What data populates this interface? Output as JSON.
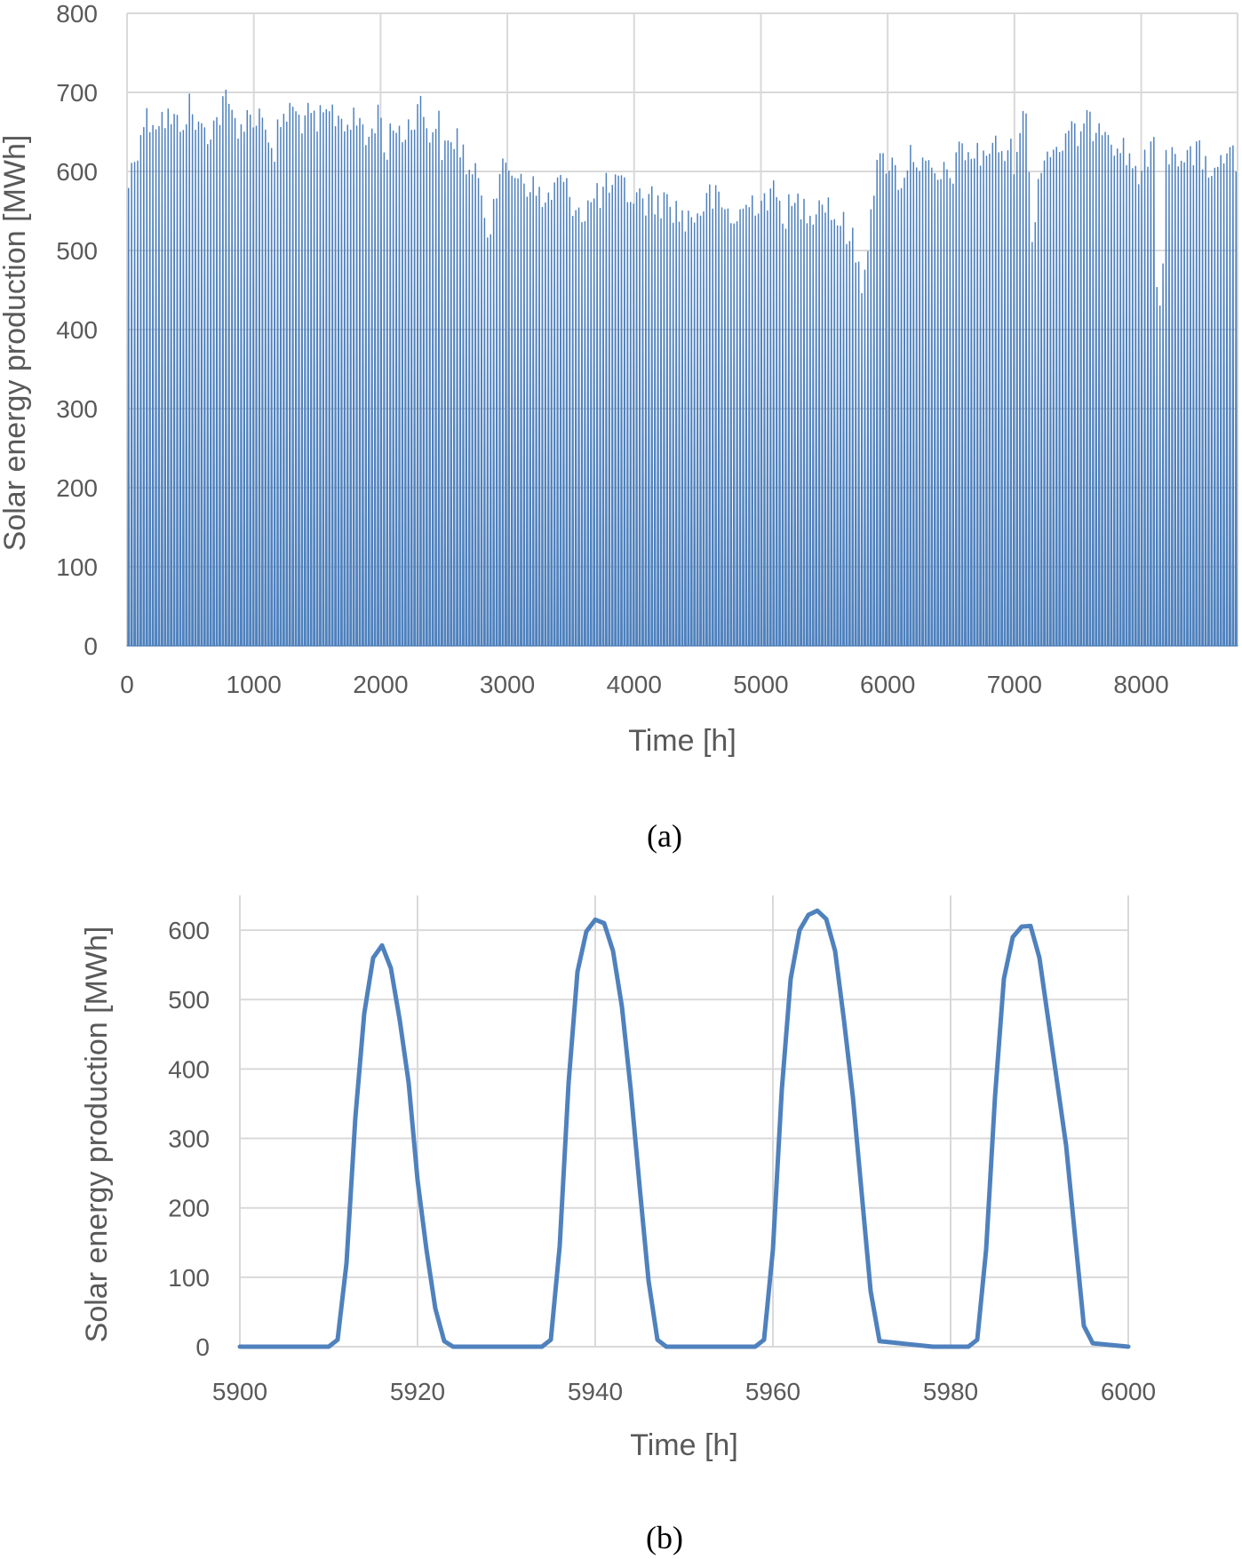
{
  "colors": {
    "series": "#4f81bd",
    "grid": "#d9d9d9",
    "text": "#595959"
  },
  "chart_data": [
    {
      "type": "area",
      "panel_label": "(a)",
      "xlabel": "Time [h]",
      "ylabel": "Solar energy production [MWh]",
      "xlim": [
        0,
        8760
      ],
      "ylim": [
        0,
        800
      ],
      "xticks": [
        0,
        1000,
        2000,
        3000,
        4000,
        5000,
        6000,
        7000,
        8000
      ],
      "yticks": [
        0,
        100,
        200,
        300,
        400,
        500,
        600,
        700,
        800
      ],
      "grid": true,
      "daily_peak_profile": {
        "x": [
          0,
          60,
          120,
          200,
          300,
          400,
          500,
          520,
          600,
          700,
          780,
          800,
          900,
          1000,
          1100,
          1150,
          1200,
          1300,
          1350,
          1400,
          1500,
          1600,
          1700,
          1800,
          1850,
          1900,
          1950,
          2000,
          2050,
          2100,
          2200,
          2300,
          2350,
          2400,
          2450,
          2500,
          2600,
          2700,
          2800,
          2850,
          2900,
          3000,
          3100,
          3200,
          3300,
          3400,
          3500,
          3600,
          3700,
          3800,
          3900,
          4000,
          4100,
          4200,
          4300,
          4400,
          4500,
          4600,
          4700,
          4800,
          4900,
          5000,
          5100,
          5200,
          5300,
          5400,
          5500,
          5600,
          5700,
          5800,
          5900,
          6000,
          6100,
          6200,
          6300,
          6400,
          6500,
          6600,
          6700,
          6800,
          6900,
          7000,
          7050,
          7100,
          7150,
          7200,
          7300,
          7400,
          7500,
          7600,
          7700,
          7800,
          7900,
          8000,
          8100,
          8130,
          8160,
          8200,
          8300,
          8400,
          8500,
          8600,
          8700,
          8760
        ],
        "y": [
          600,
          640,
          685,
          690,
          690,
          680,
          705,
          690,
          670,
          685,
          710,
          700,
          680,
          695,
          690,
          620,
          685,
          700,
          690,
          690,
          680,
          695,
          690,
          680,
          690,
          650,
          690,
          695,
          640,
          680,
          670,
          710,
          690,
          670,
          690,
          640,
          670,
          620,
          600,
          545,
          600,
          625,
          620,
          600,
          580,
          610,
          590,
          570,
          590,
          600,
          600,
          590,
          585,
          585,
          580,
          560,
          570,
          590,
          575,
          560,
          580,
          590,
          590,
          570,
          580,
          575,
          590,
          560,
          545,
          480,
          620,
          640,
          610,
          650,
          620,
          610,
          620,
          650,
          640,
          650,
          650,
          640,
          690,
          680,
          520,
          640,
          650,
          660,
          670,
          680,
          690,
          660,
          640,
          620,
          650,
          460,
          440,
          650,
          650,
          640,
          640,
          610,
          660,
          600
        ]
      },
      "day_length_hours": 24
    },
    {
      "type": "line",
      "panel_label": "(b)",
      "xlabel": "Time [h]",
      "ylabel": "Solar energy production [MWh]",
      "xlim": [
        5900,
        6000
      ],
      "ylim": [
        0,
        650
      ],
      "xticks": [
        5900,
        5920,
        5940,
        5960,
        5980,
        6000
      ],
      "yticks": [
        0,
        100,
        200,
        300,
        400,
        500,
        600
      ],
      "grid": true,
      "series": [
        {
          "x": [
            5900,
            5905,
            5910,
            5911,
            5912,
            5913,
            5914,
            5915,
            5916,
            5917,
            5918,
            5919,
            5920,
            5921,
            5922,
            5923,
            5924,
            5930,
            5934,
            5935,
            5936,
            5937,
            5938,
            5939,
            5940,
            5941,
            5942,
            5943,
            5944,
            5945,
            5946,
            5947,
            5948,
            5954,
            5958,
            5959,
            5960,
            5961,
            5962,
            5963,
            5964,
            5965,
            5966,
            5967,
            5968,
            5969,
            5970,
            5971,
            5972,
            5978,
            5982,
            5983,
            5984,
            5985,
            5986,
            5987,
            5988,
            5989,
            5990,
            5991,
            5992,
            5993,
            5994,
            5995,
            5996,
            6000
          ],
          "y": [
            0,
            0,
            0,
            10,
            120,
            330,
            480,
            560,
            578,
            545,
            470,
            380,
            240,
            140,
            55,
            8,
            0,
            0,
            0,
            10,
            145,
            380,
            540,
            598,
            615,
            610,
            570,
            490,
            370,
            230,
            95,
            10,
            0,
            0,
            0,
            10,
            140,
            370,
            530,
            600,
            622,
            628,
            616,
            570,
            470,
            360,
            220,
            80,
            8,
            0,
            0,
            10,
            140,
            360,
            530,
            590,
            605,
            606,
            560,
            470,
            380,
            290,
            160,
            30,
            5,
            0
          ]
        }
      ]
    }
  ]
}
